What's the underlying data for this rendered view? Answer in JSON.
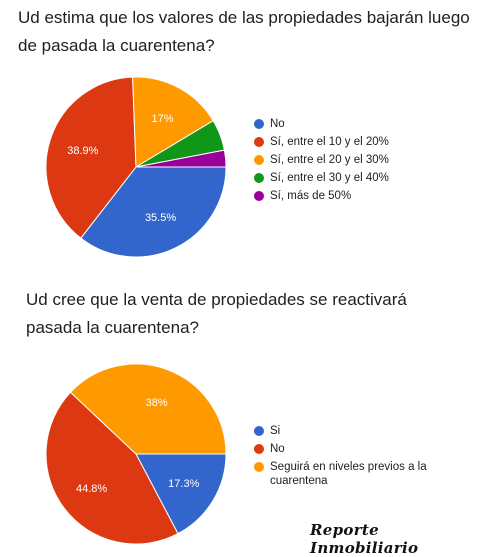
{
  "chart_data": [
    {
      "type": "pie",
      "title": "Ud estima que los valores de las propiedades bajarán luego de pasada la cuarentena?",
      "legend_position": "right",
      "slices": [
        {
          "label": "No",
          "value": 35.5,
          "value_label": "35.5%",
          "color": "#3366cc"
        },
        {
          "label": "Sí, entre el 10 y el 20%",
          "value": 38.9,
          "value_label": "38.9%",
          "color": "#dc3912"
        },
        {
          "label": "Sí, entre el 20 y el 30%",
          "value": 17.0,
          "value_label": "17%",
          "color": "#ff9900"
        },
        {
          "label": "Sí, entre el 30 y el 40%",
          "value": 5.6,
          "value_label": "",
          "color": "#109618"
        },
        {
          "label": "Sí, más de 50%",
          "value": 3.0,
          "value_label": "",
          "color": "#990099"
        }
      ]
    },
    {
      "type": "pie",
      "title": "Ud cree que la venta de propiedades se reactivará pasada la cuarentena?",
      "legend_position": "right",
      "slices": [
        {
          "label": "Si",
          "value": 17.3,
          "value_label": "17.3%",
          "color": "#3366cc"
        },
        {
          "label": "No",
          "value": 44.8,
          "value_label": "44.8%",
          "color": "#dc3912"
        },
        {
          "label": "Seguirá en niveles previos a la cuarentena",
          "value": 38.0,
          "value_label": "38%",
          "color": "#ff9900"
        }
      ]
    }
  ],
  "watermark": "Reporte Inmobiliario"
}
